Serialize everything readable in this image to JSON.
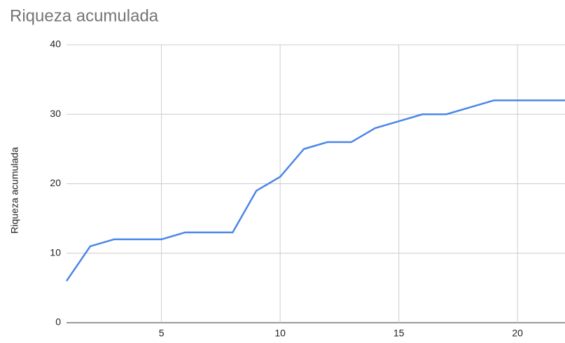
{
  "chart_data": {
    "type": "line",
    "title": "Riqueza acumulada",
    "y_label": "Riqueza acumulada",
    "x": [
      1,
      2,
      3,
      4,
      5,
      6,
      7,
      8,
      9,
      10,
      11,
      12,
      13,
      14,
      15,
      16,
      17,
      18,
      19,
      20,
      21,
      22
    ],
    "series": [
      {
        "name": "Riqueza acumulada",
        "color": "#4a86e8",
        "values": [
          6,
          11,
          12,
          12,
          12,
          13,
          13,
          13,
          19,
          21,
          25,
          26,
          26,
          28,
          29,
          30,
          30,
          31,
          32,
          32,
          32,
          32
        ]
      }
    ],
    "xlim": [
      1,
      22
    ],
    "xticks": [
      5,
      10,
      15,
      20
    ],
    "ylim": [
      0,
      40
    ],
    "yticks": [
      0,
      10,
      20,
      30,
      40
    ],
    "grid": true
  }
}
